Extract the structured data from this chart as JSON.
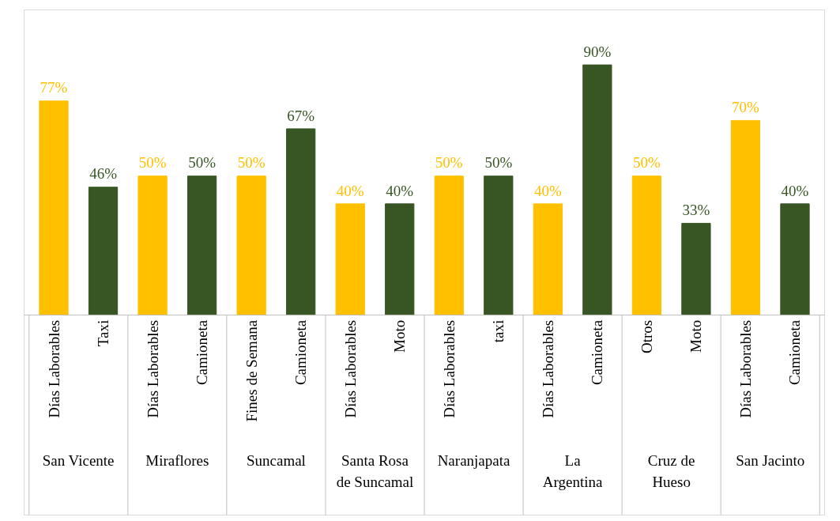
{
  "chart_data": {
    "type": "bar",
    "categories": [
      "Días Laborables",
      "Taxi",
      "Días Laborables",
      "Camioneta",
      "Fines de Semana",
      "Camioneta",
      "Días Laborables",
      "Moto",
      "Días Laborables",
      "taxi",
      "Días Laborables",
      "Camioneta",
      "Otros",
      "Moto",
      "Días Laborables",
      "Camioneta"
    ],
    "values": [
      77,
      46,
      50,
      50,
      50,
      67,
      40,
      40,
      50,
      50,
      40,
      90,
      50,
      33,
      70,
      40
    ],
    "value_labels": [
      "77%",
      "46%",
      "50%",
      "50%",
      "50%",
      "67%",
      "40%",
      "40%",
      "50%",
      "50%",
      "40%",
      "90%",
      "50%",
      "33%",
      "70%",
      "40%"
    ],
    "colors": [
      "#ffc000",
      "#375623",
      "#ffc000",
      "#375623",
      "#ffc000",
      "#375623",
      "#ffc000",
      "#375623",
      "#ffc000",
      "#375623",
      "#ffc000",
      "#375623",
      "#ffc000",
      "#375623",
      "#ffc000",
      "#375623"
    ],
    "annotations": [
      "San Vicente",
      "Miraflores",
      "Suncamal",
      "Santa Rosa\nde Suncamal",
      "Naranjapata",
      "La\nArgentina",
      "Cruz de\nHueso",
      "San Jacinto"
    ],
    "title": null
  }
}
